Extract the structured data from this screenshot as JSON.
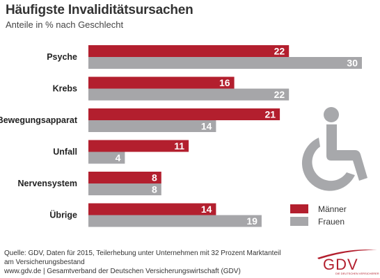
{
  "chart_data": {
    "type": "bar",
    "orientation": "horizontal",
    "title": "Häufigste Invaliditätsursachen",
    "subtitle": "Anteile in % nach Geschlecht",
    "categories": [
      "Psyche",
      "Krebs",
      "Bewegungsapparat",
      "Unfall",
      "Nervensystem",
      "Übrige"
    ],
    "series": [
      {
        "name": "Männer",
        "color": "#b31f2e",
        "values": [
          22,
          16,
          21,
          11,
          8,
          14
        ]
      },
      {
        "name": "Frauen",
        "color": "#a6a6a9",
        "values": [
          30,
          22,
          14,
          4,
          8,
          19
        ]
      }
    ],
    "xlim": [
      0,
      30
    ],
    "grid": false,
    "legend_position": "bottom-right",
    "data_labels": true
  },
  "footer": {
    "source_line1": "Quelle: GDV, Daten für 2015, Teilerhebung unter Unternehmen mit 32 Prozent Marktanteil",
    "source_line2": "am Versicherungsbestand",
    "credit": "www.gdv.de | Gesamtverband der Deutschen Versicherungswirtschaft (GDV)"
  },
  "logo": {
    "text": "GDV",
    "subtext": "DIE DEUTSCHEN VERSICHERER"
  },
  "icons": {
    "illustration": "wheelchair-icon"
  }
}
